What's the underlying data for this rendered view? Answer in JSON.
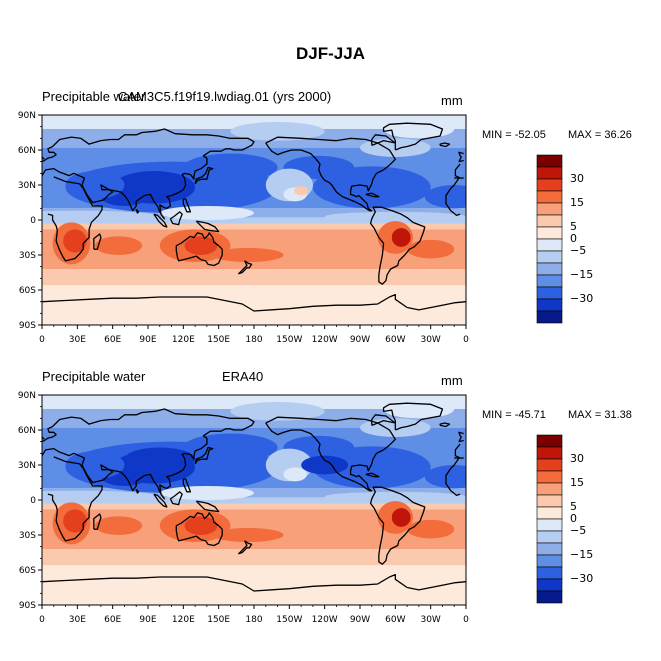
{
  "figure": {
    "title": "DJF-JJA"
  },
  "panels": [
    {
      "left_label": "Precipitable water",
      "center_label": "CAM3C5.f19f19.lwdiag.01 (yrs 2000)",
      "units": "mm",
      "min_label": "MIN = -52.05",
      "max_label": "MAX =  36.26"
    },
    {
      "left_label": "Precipitable water",
      "center_label": "ERA40",
      "units": "mm",
      "min_label": "MIN = -45.71",
      "max_label": "MAX =  31.38"
    }
  ],
  "axes": {
    "lat_labels": [
      "90N",
      "60N",
      "30N",
      "0",
      "30S",
      "60S",
      "90S"
    ],
    "lon_labels": [
      "0",
      "30E",
      "60E",
      "90E",
      "120E",
      "150E",
      "180",
      "150W",
      "120W",
      "90W",
      "60W",
      "30W",
      "0"
    ]
  },
  "colorbar": {
    "labels": [
      "30",
      "15",
      "5",
      "0",
      "-5",
      "-15",
      "-30"
    ],
    "colors": [
      "#7a0000",
      "#c0160a",
      "#e4401e",
      "#f26c3c",
      "#f7a07a",
      "#fbc9ad",
      "#fdeadc",
      "#dde8f8",
      "#b6cdf2",
      "#8eaeea",
      "#5f8ee6",
      "#2e60e2",
      "#1038c8",
      "#071a8a"
    ]
  }
}
